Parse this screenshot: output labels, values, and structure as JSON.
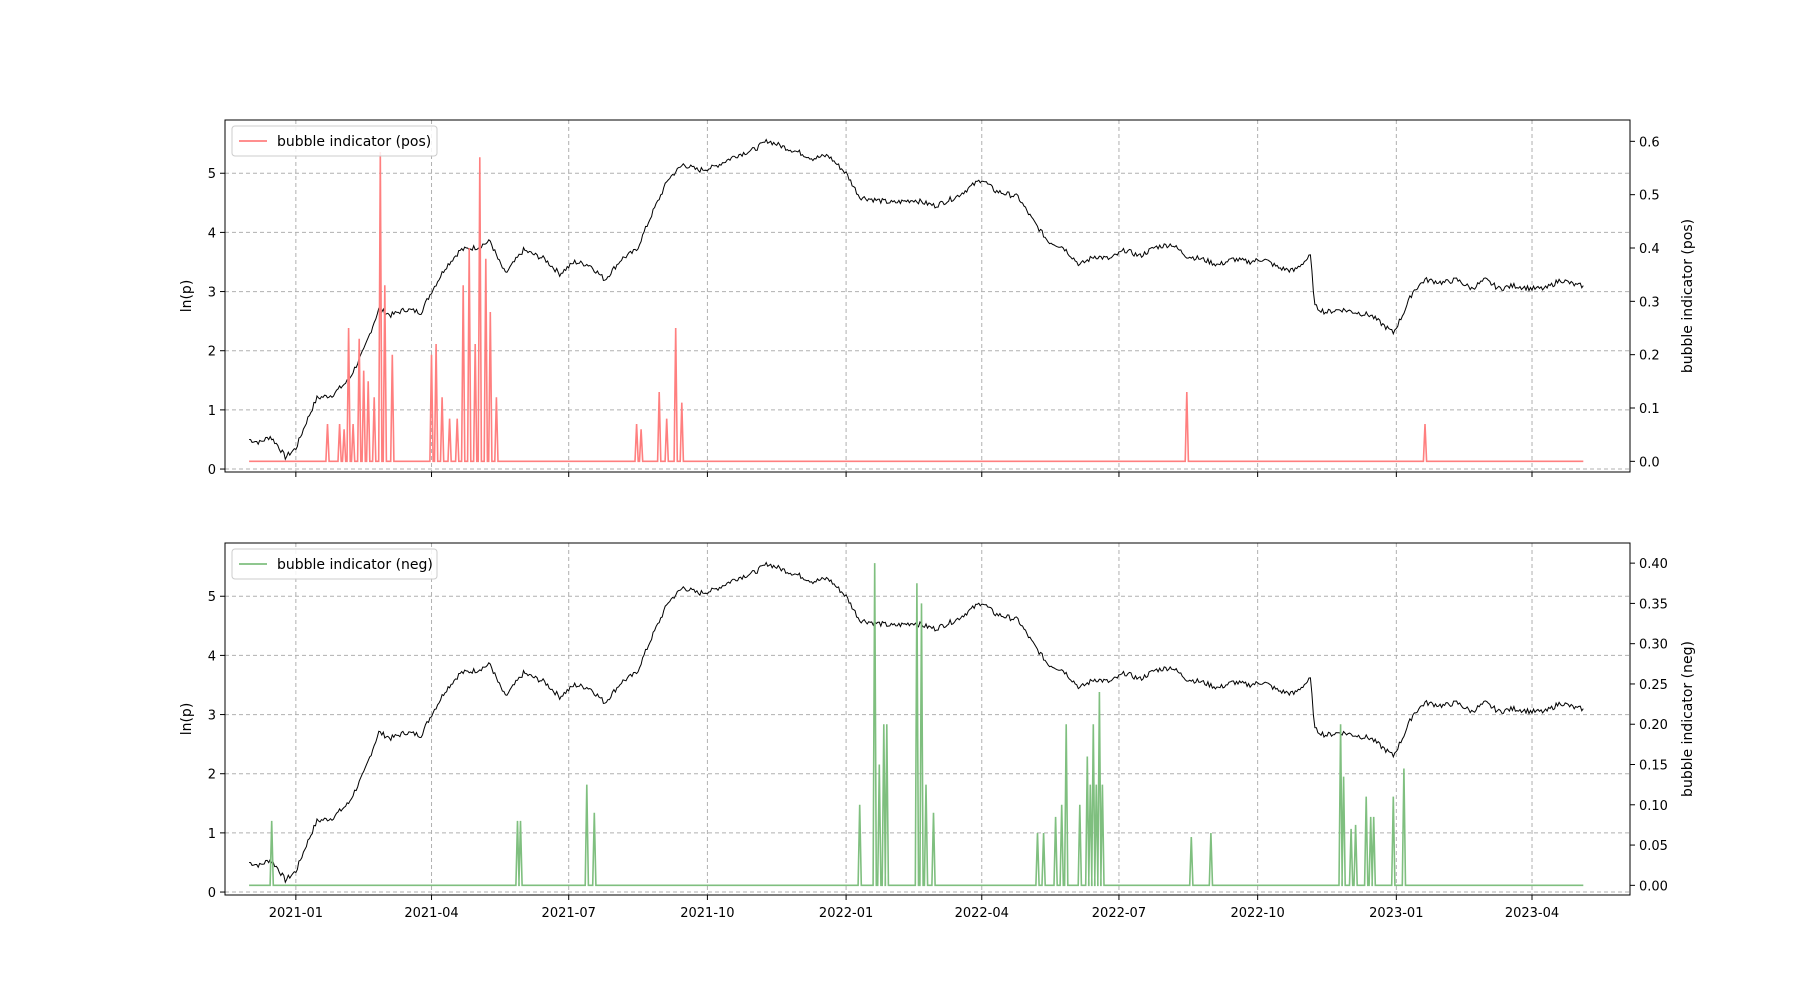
{
  "chart_data": [
    {
      "type": "line",
      "panel": "top",
      "xlabel": "",
      "ylabel_left": "ln(p)",
      "ylabel_right": "bubble indicator (pos)",
      "x_range": [
        "2020-11-15",
        "2023-06-05"
      ],
      "ylim_left": [
        -0.05,
        5.9
      ],
      "ylim_right": [
        -0.02,
        0.64
      ],
      "yticks_left": [
        "0",
        "1",
        "2",
        "3",
        "4",
        "5"
      ],
      "yticks_right": [
        "0.0",
        "0.1",
        "0.2",
        "0.3",
        "0.4",
        "0.5",
        "0.6"
      ],
      "xticks": [
        "2021-01",
        "2021-04",
        "2021-07",
        "2021-10",
        "2022-01",
        "2022-04",
        "2022-07",
        "2022-10",
        "2023-01",
        "2023-04"
      ],
      "grid": true,
      "legend": {
        "position": "upper-left",
        "entries": [
          "bubble indicator (pos)"
        ]
      },
      "series": [
        {
          "name": "",
          "axis": "left",
          "color": "#000000",
          "x": [
            "2020-12-01",
            "2020-12-08",
            "2020-12-15",
            "2020-12-20",
            "2020-12-25",
            "2021-01-01",
            "2021-01-08",
            "2021-01-15",
            "2021-01-25",
            "2021-02-05",
            "2021-02-15",
            "2021-02-25",
            "2021-03-05",
            "2021-03-15",
            "2021-03-25",
            "2021-04-01",
            "2021-04-10",
            "2021-04-20",
            "2021-05-01",
            "2021-05-10",
            "2021-05-15",
            "2021-05-20",
            "2021-06-01",
            "2021-06-15",
            "2021-06-25",
            "2021-07-05",
            "2021-07-15",
            "2021-07-25",
            "2021-08-05",
            "2021-08-15",
            "2021-08-25",
            "2021-09-05",
            "2021-09-15",
            "2021-09-25",
            "2021-10-05",
            "2021-10-20",
            "2021-11-01",
            "2021-11-10",
            "2021-11-20",
            "2021-12-01",
            "2021-12-10",
            "2021-12-20",
            "2022-01-01",
            "2022-01-10",
            "2022-01-20",
            "2022-02-01",
            "2022-02-15",
            "2022-03-01",
            "2022-03-15",
            "2022-04-01",
            "2022-04-10",
            "2022-04-25",
            "2022-05-05",
            "2022-05-15",
            "2022-05-25",
            "2022-06-05",
            "2022-06-15",
            "2022-06-25",
            "2022-07-05",
            "2022-07-15",
            "2022-07-25",
            "2022-08-05",
            "2022-08-15",
            "2022-08-25",
            "2022-09-05",
            "2022-09-15",
            "2022-09-25",
            "2022-10-05",
            "2022-10-15",
            "2022-10-25",
            "2022-11-05",
            "2022-11-08",
            "2022-11-15",
            "2022-11-25",
            "2022-12-05",
            "2022-12-15",
            "2022-12-25",
            "2022-12-30",
            "2023-01-05",
            "2023-01-12",
            "2023-01-20",
            "2023-02-01",
            "2023-02-10",
            "2023-02-20",
            "2023-03-01",
            "2023-03-10",
            "2023-03-20",
            "2023-04-01",
            "2023-04-10",
            "2023-04-20",
            "2023-05-01",
            "2023-05-05"
          ],
          "values": [
            0.5,
            0.45,
            0.55,
            0.4,
            0.2,
            0.35,
            0.8,
            1.2,
            1.25,
            1.5,
            2.0,
            2.7,
            2.6,
            2.7,
            2.65,
            3.0,
            3.4,
            3.7,
            3.75,
            3.85,
            3.55,
            3.3,
            3.7,
            3.55,
            3.3,
            3.5,
            3.45,
            3.2,
            3.55,
            3.7,
            4.3,
            4.9,
            5.15,
            5.05,
            5.1,
            5.3,
            5.4,
            5.55,
            5.45,
            5.35,
            5.25,
            5.3,
            5.0,
            4.6,
            4.55,
            4.5,
            4.55,
            4.45,
            4.6,
            4.9,
            4.7,
            4.6,
            4.2,
            3.85,
            3.75,
            3.45,
            3.6,
            3.55,
            3.7,
            3.6,
            3.75,
            3.8,
            3.6,
            3.55,
            3.45,
            3.55,
            3.5,
            3.55,
            3.4,
            3.35,
            3.6,
            2.75,
            2.65,
            2.7,
            2.65,
            2.6,
            2.4,
            2.3,
            2.6,
            3.0,
            3.2,
            3.15,
            3.2,
            3.05,
            3.2,
            3.05,
            3.1,
            3.05,
            3.05,
            3.2,
            3.1,
            3.1
          ]
        },
        {
          "name": "bubble indicator (pos)",
          "axis": "right",
          "color": "#ff7f7f",
          "spikes": [
            [
              "2021-01-22",
              0.07
            ],
            [
              "2021-01-30",
              0.07
            ],
            [
              "2021-02-02",
              0.06
            ],
            [
              "2021-02-05",
              0.25
            ],
            [
              "2021-02-08",
              0.07
            ],
            [
              "2021-02-12",
              0.23
            ],
            [
              "2021-02-15",
              0.17
            ],
            [
              "2021-02-18",
              0.15
            ],
            [
              "2021-02-22",
              0.12
            ],
            [
              "2021-02-26",
              0.58
            ],
            [
              "2021-03-01",
              0.33
            ],
            [
              "2021-03-06",
              0.2
            ],
            [
              "2021-04-01",
              0.2
            ],
            [
              "2021-04-04",
              0.22
            ],
            [
              "2021-04-08",
              0.12
            ],
            [
              "2021-04-13",
              0.08
            ],
            [
              "2021-04-18",
              0.08
            ],
            [
              "2021-04-22",
              0.33
            ],
            [
              "2021-04-26",
              0.4
            ],
            [
              "2021-04-30",
              0.22
            ],
            [
              "2021-05-03",
              0.57
            ],
            [
              "2021-05-07",
              0.38
            ],
            [
              "2021-05-10",
              0.28
            ],
            [
              "2021-05-14",
              0.12
            ],
            [
              "2021-08-15",
              0.07
            ],
            [
              "2021-08-18",
              0.06
            ],
            [
              "2021-08-30",
              0.13
            ],
            [
              "2021-09-04",
              0.08
            ],
            [
              "2021-09-10",
              0.25
            ],
            [
              "2021-09-14",
              0.11
            ],
            [
              "2022-08-15",
              0.13
            ],
            [
              "2023-01-20",
              0.07
            ]
          ]
        }
      ]
    },
    {
      "type": "line",
      "panel": "bottom",
      "xlabel": "",
      "ylabel_left": "ln(p)",
      "ylabel_right": "bubble indicator (neg)",
      "x_range": [
        "2020-11-15",
        "2023-06-05"
      ],
      "ylim_left": [
        -0.05,
        5.9
      ],
      "ylim_right": [
        -0.012,
        0.425
      ],
      "yticks_left": [
        "0",
        "1",
        "2",
        "3",
        "4",
        "5"
      ],
      "yticks_right": [
        "0.00",
        "0.05",
        "0.10",
        "0.15",
        "0.20",
        "0.25",
        "0.30",
        "0.35",
        "0.40"
      ],
      "xticks": [
        "2021-01",
        "2021-04",
        "2021-07",
        "2021-10",
        "2022-01",
        "2022-04",
        "2022-07",
        "2022-10",
        "2023-01",
        "2023-04"
      ],
      "grid": true,
      "legend": {
        "position": "upper-left",
        "entries": [
          "bubble indicator (neg)"
        ]
      },
      "series": [
        {
          "name": "",
          "axis": "left",
          "color": "#000000",
          "same_as_top_price": true
        },
        {
          "name": "bubble indicator (neg)",
          "axis": "right",
          "color": "#7fbf7f",
          "spikes": [
            [
              "2020-12-16",
              0.08
            ],
            [
              "2021-05-28",
              0.08
            ],
            [
              "2021-05-30",
              0.08
            ],
            [
              "2021-07-13",
              0.125
            ],
            [
              "2021-07-18",
              0.09
            ],
            [
              "2022-01-10",
              0.1
            ],
            [
              "2022-01-20",
              0.4
            ],
            [
              "2022-01-23",
              0.15
            ],
            [
              "2022-01-26",
              0.2
            ],
            [
              "2022-01-28",
              0.2
            ],
            [
              "2022-02-17",
              0.375
            ],
            [
              "2022-02-20",
              0.35
            ],
            [
              "2022-02-23",
              0.125
            ],
            [
              "2022-02-28",
              0.09
            ],
            [
              "2022-05-08",
              0.065
            ],
            [
              "2022-05-12",
              0.065
            ],
            [
              "2022-05-20",
              0.085
            ],
            [
              "2022-05-24",
              0.1
            ],
            [
              "2022-05-27",
              0.2
            ],
            [
              "2022-06-05",
              0.1
            ],
            [
              "2022-06-10",
              0.16
            ],
            [
              "2022-06-12",
              0.125
            ],
            [
              "2022-06-14",
              0.2
            ],
            [
              "2022-06-16",
              0.125
            ],
            [
              "2022-06-18",
              0.24
            ],
            [
              "2022-06-20",
              0.125
            ],
            [
              "2022-08-18",
              0.06
            ],
            [
              "2022-08-31",
              0.065
            ],
            [
              "2022-11-25",
              0.2
            ],
            [
              "2022-11-27",
              0.135
            ],
            [
              "2022-12-02",
              0.07
            ],
            [
              "2022-12-05",
              0.075
            ],
            [
              "2022-12-12",
              0.11
            ],
            [
              "2022-12-15",
              0.085
            ],
            [
              "2022-12-17",
              0.085
            ],
            [
              "2022-12-30",
              0.11
            ],
            [
              "2023-01-06",
              0.145
            ]
          ]
        }
      ]
    }
  ]
}
